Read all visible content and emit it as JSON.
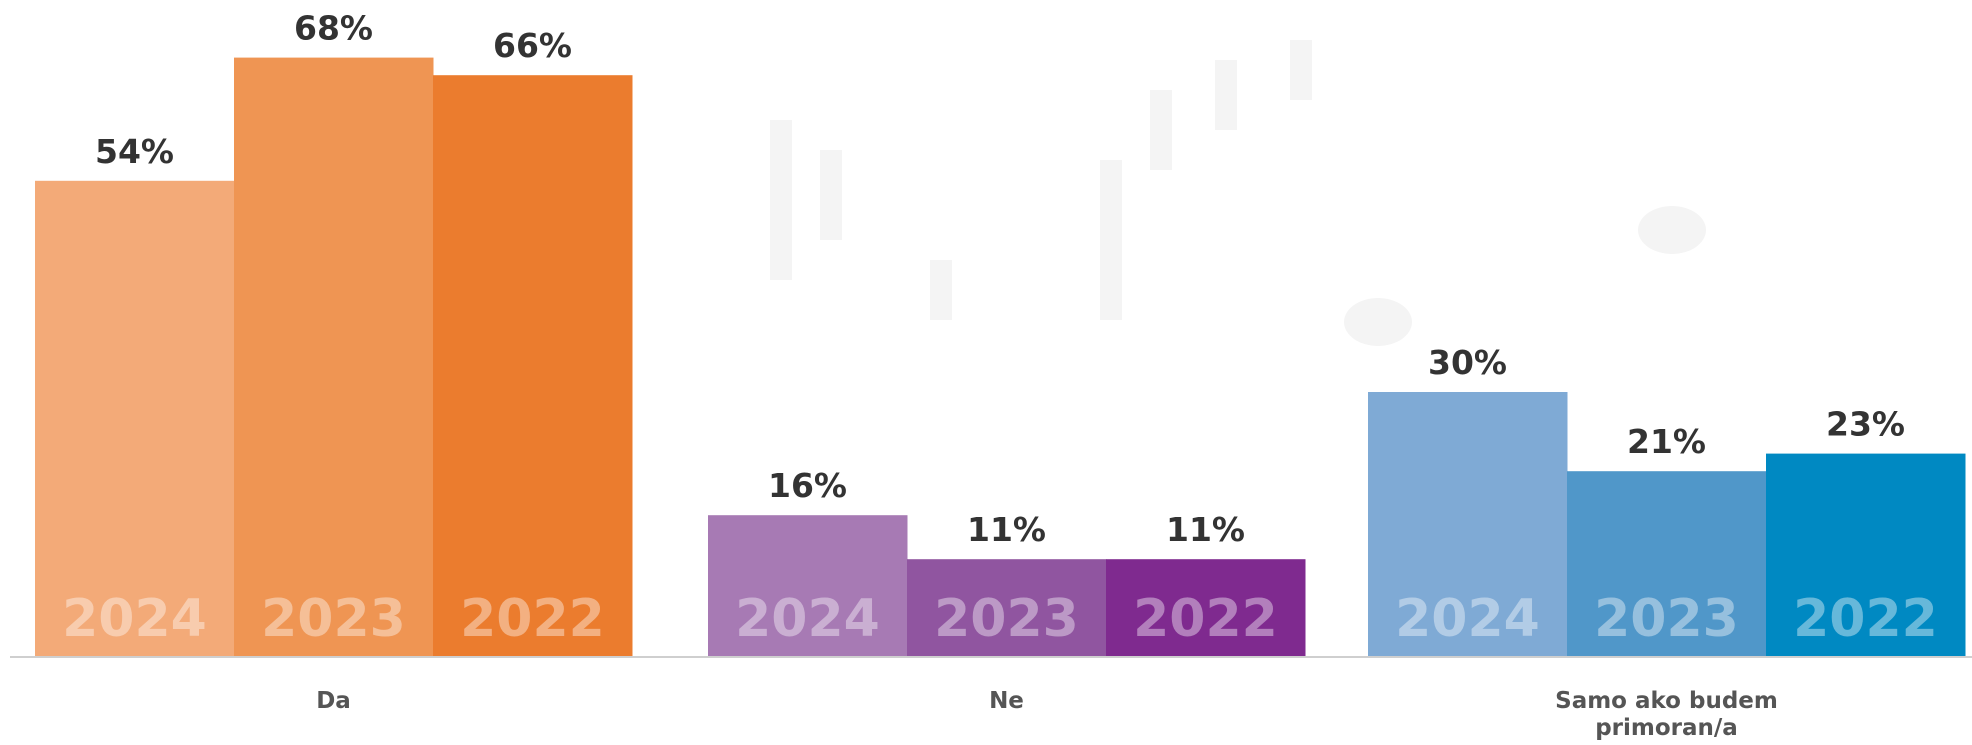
{
  "chart_data": {
    "type": "bar",
    "categories": [
      "Da",
      "Ne",
      "Samo ako budem primoran/a"
    ],
    "series": [
      {
        "name": "2024",
        "colors": [
          "#f3aa78",
          "#a77ab4",
          "#7faad5"
        ],
        "values": [
          54,
          16,
          30
        ],
        "value_labels": [
          "54%",
          "16%",
          "30%"
        ]
      },
      {
        "name": "2023",
        "colors": [
          "#ef9553",
          "#9055a0",
          "#5097c9"
        ],
        "values": [
          68,
          11,
          21
        ],
        "value_labels": [
          "68%",
          "11%",
          "21%"
        ]
      },
      {
        "name": "2022",
        "colors": [
          "#eb7c2e",
          "#7f2a8f",
          "#0089c2"
        ],
        "values": [
          66,
          11,
          23
        ],
        "value_labels": [
          "66%",
          "11%",
          "23%"
        ]
      }
    ]
  }
}
